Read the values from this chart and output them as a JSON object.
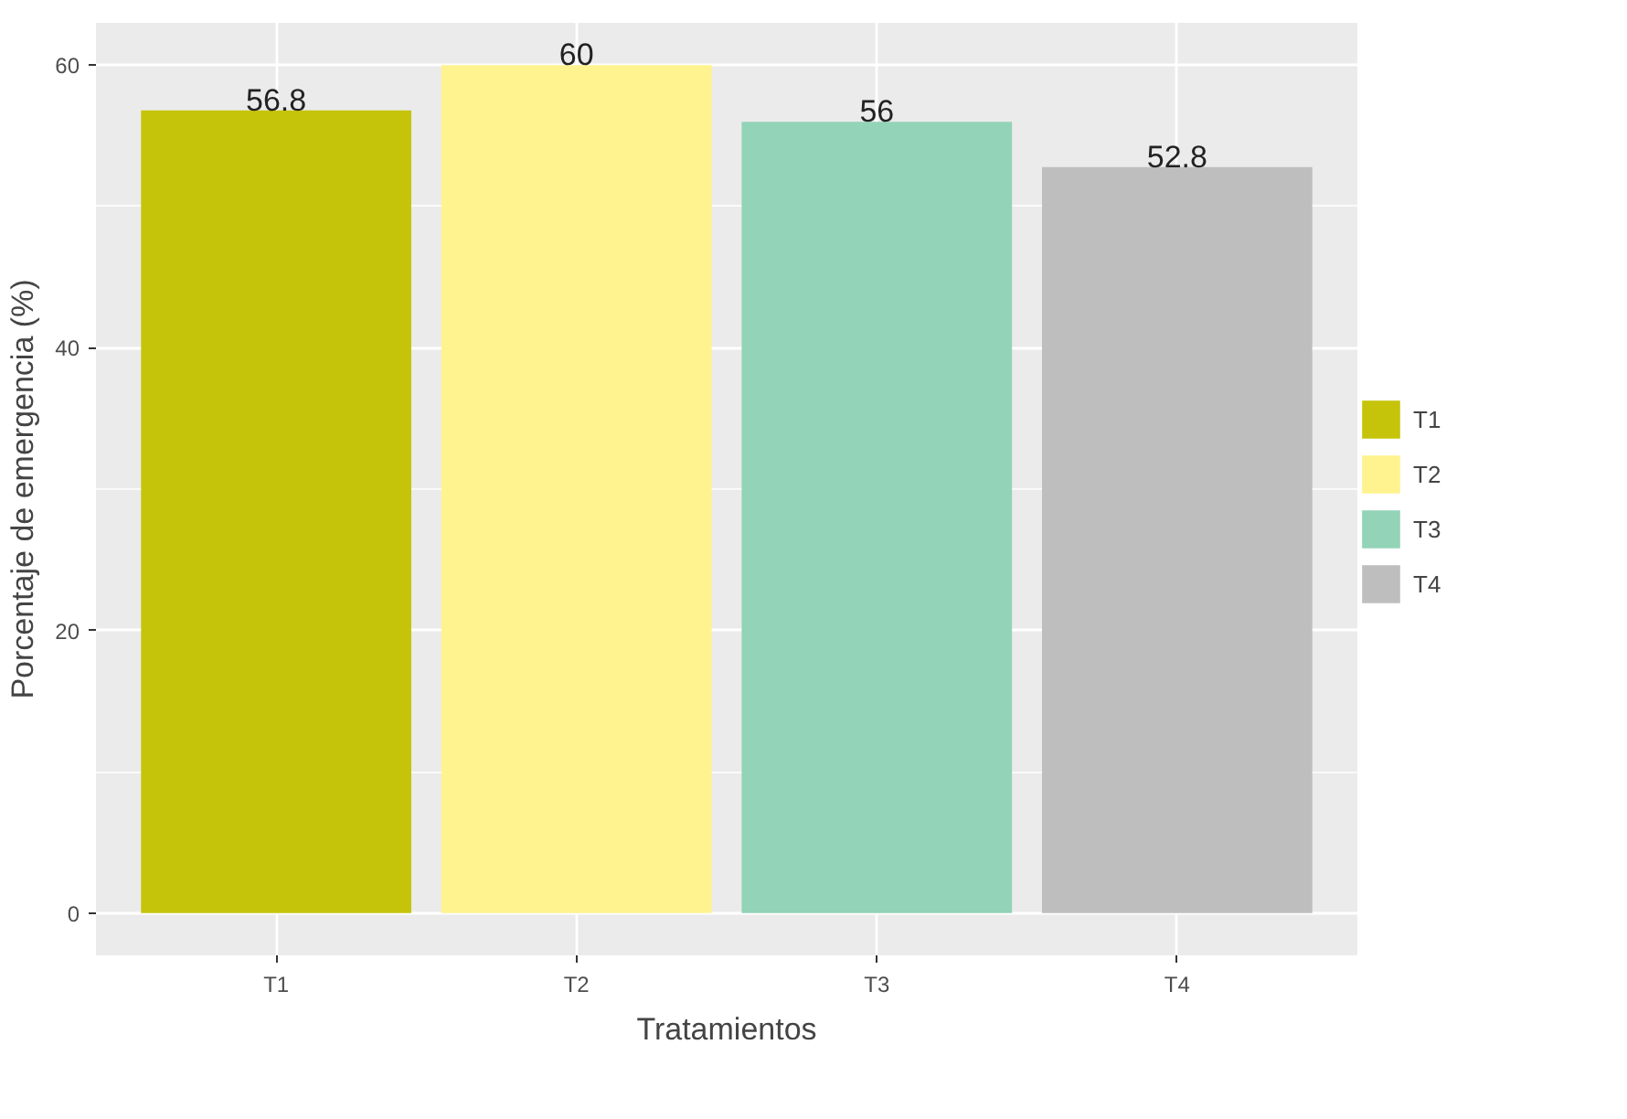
{
  "chart_data": {
    "type": "bar",
    "xlabel": "Tratamientos",
    "ylabel": "Porcentaje de emergencia (%)",
    "categories": [
      "T1",
      "T2",
      "T3",
      "T4"
    ],
    "series": [
      {
        "name": "T1",
        "color": "#c6c40a",
        "values": [
          56.8,
          null,
          null,
          null
        ]
      },
      {
        "name": "T2",
        "color": "#fff38f",
        "values": [
          null,
          60,
          null,
          null
        ]
      },
      {
        "name": "T3",
        "color": "#93d3b7",
        "values": [
          null,
          null,
          56,
          null
        ]
      },
      {
        "name": "T4",
        "color": "#bebebe",
        "values": [
          null,
          null,
          null,
          52.8
        ]
      }
    ],
    "ylim": [
      -3,
      63
    ],
    "yticks": [
      0,
      20,
      40,
      60
    ],
    "grid": true,
    "legend": "right",
    "data_labels": true
  }
}
